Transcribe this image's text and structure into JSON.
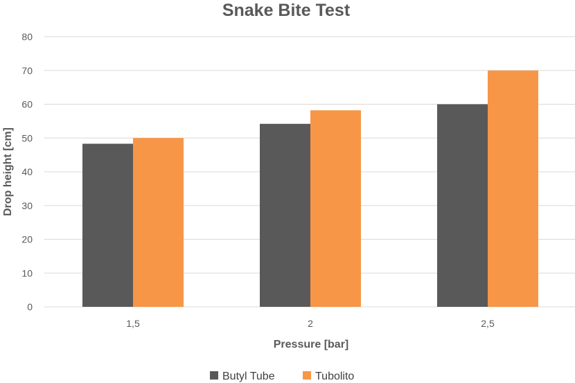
{
  "chart_data": {
    "type": "bar",
    "title": "Snake Bite Test",
    "xlabel": "Pressure [bar]",
    "ylabel": "Drop height [cm]",
    "categories": [
      "1,5",
      "2",
      "2,5"
    ],
    "series": [
      {
        "name": "Butyl Tube",
        "color": "#595959",
        "values": [
          48.3,
          54.2,
          60
        ]
      },
      {
        "name": "Tubolito",
        "color": "#f79646",
        "values": [
          50,
          58.2,
          70
        ]
      }
    ],
    "ylim": [
      0,
      80
    ],
    "yticks": [
      0,
      10,
      20,
      30,
      40,
      50,
      60,
      70,
      80
    ],
    "grid": true,
    "legend_position": "bottom-center"
  }
}
